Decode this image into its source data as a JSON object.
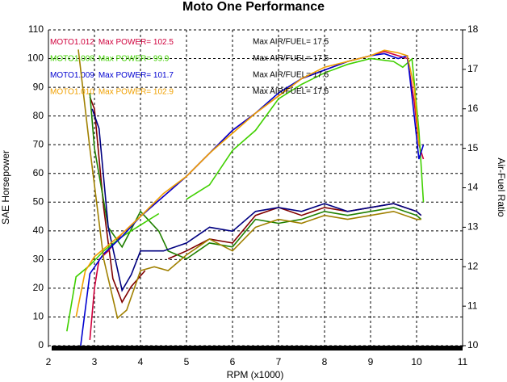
{
  "chart_data": {
    "type": "line",
    "title": "Moto One Performance",
    "x_label": "RPM (x1000)",
    "y_label": "SAE Horsepower",
    "y2_label": "Air-Fuel Ratio",
    "xlim": [
      2,
      11
    ],
    "xticks": [
      2,
      3,
      4,
      5,
      6,
      7,
      8,
      9,
      10,
      11
    ],
    "ylim": [
      0,
      110
    ],
    "yticks": [
      0,
      10,
      20,
      30,
      40,
      50,
      60,
      70,
      80,
      90,
      100,
      110
    ],
    "y2lim": [
      10,
      18
    ],
    "y2ticks": [
      10,
      11,
      12,
      13,
      14,
      15,
      16,
      17,
      18
    ],
    "grid": true,
    "series": [
      {
        "name": "MOTO1.012",
        "power_label": "Max POWER= 102.5",
        "afr_label": "Max AIR/FUEL= 17.5",
        "color": "#d0003c",
        "afr_color": "#800000",
        "x": [
          2.9,
          3.0,
          3.1,
          3.3,
          3.6,
          4.0,
          4.5,
          5.0,
          5.5,
          6.0,
          6.5,
          7.0,
          7.5,
          8.0,
          8.5,
          9.0,
          9.3,
          9.6,
          9.8,
          9.95,
          10.05,
          10.15
        ],
        "values": [
          2,
          20,
          30,
          33,
          39,
          45,
          52,
          59,
          67,
          75,
          81,
          87,
          93,
          96,
          99,
          101,
          102.5,
          101,
          100,
          85,
          70,
          65
        ],
        "afr_x": [
          2.9,
          3.0,
          3.2,
          3.4,
          3.6,
          3.8,
          4.1,
          4.2,
          4.6,
          5.0,
          5.5,
          6.0,
          6.5,
          7.0,
          7.5,
          8.0,
          8.5,
          9.0,
          9.5,
          10.0,
          10.1
        ],
        "afr_values": [
          16.3,
          16.0,
          13.5,
          11.7,
          11.1,
          11.5,
          11.9,
          null,
          12.2,
          12.4,
          12.7,
          12.6,
          13.3,
          13.5,
          13.3,
          13.5,
          13.4,
          13.5,
          13.6,
          13.4,
          13.3
        ]
      },
      {
        "name": "MOTO1.008",
        "power_label": "Max POWER= 99.9",
        "afr_label": "Max AIR/FUEL= 17.5",
        "color": "#40d000",
        "afr_color": "#208000",
        "x": [
          2.4,
          2.6,
          2.9,
          3.2,
          3.6,
          4.0,
          4.4,
          4.6,
          5.0,
          5.5,
          6.0,
          6.5,
          7.0,
          7.5,
          8.0,
          8.5,
          9.0,
          9.5,
          9.7,
          9.9,
          10.05,
          10.15
        ],
        "values": [
          5,
          24,
          28,
          33,
          38,
          42,
          46,
          null,
          51,
          56,
          68,
          75,
          86,
          91,
          95,
          98,
          100,
          99,
          97,
          99.9,
          75,
          50
        ],
        "afr_x": [
          2.9,
          3.0,
          3.3,
          3.6,
          4.0,
          4.4,
          4.6,
          5.0,
          5.5,
          6.0,
          6.5,
          7.0,
          7.5,
          8.0,
          8.5,
          9.0,
          9.5,
          10.0,
          10.1
        ],
        "afr_values": [
          16.4,
          15.0,
          13.0,
          12.5,
          13.4,
          12.9,
          12.4,
          12.2,
          12.6,
          12.5,
          13.2,
          13.1,
          13.2,
          13.4,
          13.3,
          13.4,
          13.5,
          13.3,
          13.2
        ]
      },
      {
        "name": "MOTO1.009",
        "power_label": "Max POWER= 101.7",
        "afr_label": "Max AIR/FUEL= 17.5",
        "color": "#0000d0",
        "afr_color": "#000080",
        "x": [
          2.7,
          2.9,
          3.2,
          3.6,
          4.0,
          4.5,
          5.0,
          5.5,
          6.0,
          6.5,
          7.0,
          7.5,
          8.0,
          8.5,
          9.0,
          9.3,
          9.6,
          9.8,
          9.95,
          10.05,
          10.15
        ],
        "values": [
          0,
          25,
          32,
          38,
          45,
          52,
          59,
          67,
          75,
          81,
          88,
          93,
          96,
          99,
          101,
          101.7,
          100,
          101,
          80,
          65,
          70
        ],
        "afr_x": [
          2.95,
          3.1,
          3.3,
          3.6,
          3.8,
          4.0,
          4.5,
          5.0,
          5.5,
          6.0,
          6.5,
          7.0,
          7.5,
          8.0,
          8.5,
          9.0,
          9.5,
          10.0,
          10.1
        ],
        "afr_values": [
          16.0,
          15.5,
          13.0,
          11.4,
          11.8,
          12.4,
          12.4,
          12.6,
          13.0,
          12.9,
          13.4,
          13.5,
          13.4,
          13.6,
          13.4,
          13.5,
          13.6,
          13.4,
          13.3
        ]
      },
      {
        "name": "MOTO1.010",
        "power_label": "Max POWER= 102.9",
        "afr_label": "Max AIR/FUEL= 17.6",
        "color": "#f0a000",
        "afr_color": "#a08000",
        "x": [
          2.6,
          2.8,
          3.0,
          3.3,
          3.6,
          4.0,
          4.5,
          5.0,
          5.5,
          6.0,
          6.5,
          7.0,
          7.5,
          8.0,
          8.5,
          9.0,
          9.3,
          9.6,
          9.8,
          9.95,
          10.05
        ],
        "values": [
          10,
          26,
          31,
          35,
          39,
          45,
          53,
          59,
          67,
          74,
          81,
          87,
          93,
          97,
          99,
          101,
          102.9,
          102,
          101,
          90,
          70
        ],
        "afr_x": [
          2.65,
          2.9,
          3.2,
          3.5,
          3.7,
          4.0,
          4.3,
          4.6,
          5.0,
          5.5,
          6.0,
          6.5,
          7.0,
          7.5,
          8.0,
          8.5,
          9.0,
          9.5,
          10.0,
          10.1
        ],
        "afr_values": [
          17.5,
          15.0,
          12.2,
          10.7,
          10.9,
          11.9,
          12.0,
          11.9,
          12.3,
          12.7,
          12.4,
          13.0,
          13.2,
          13.1,
          13.3,
          13.2,
          13.3,
          13.4,
          13.2,
          13.2
        ]
      }
    ]
  }
}
